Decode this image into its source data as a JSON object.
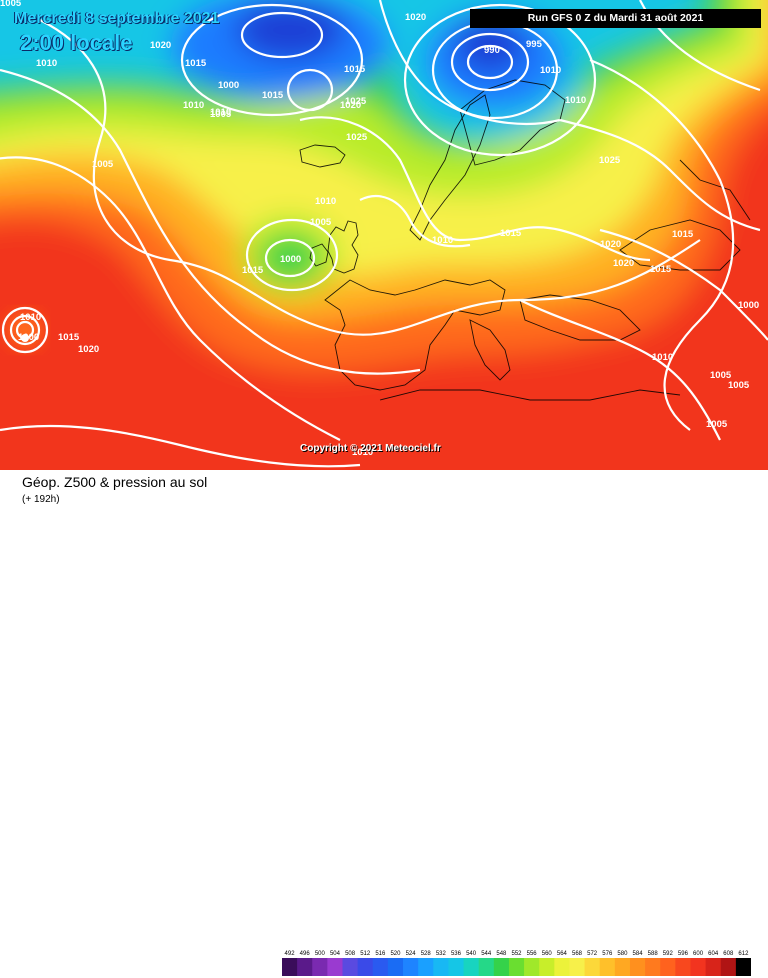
{
  "header": {
    "date_text": "Mercredi 8 septembre 2021",
    "time_text": "2:00 locale",
    "run_text": "Run GFS 0 Z du Mardi 31 août 2021"
  },
  "map": {
    "copyright": "Copyright © 2021 Meteociel.fr",
    "pressure_labels": [
      {
        "text": "1005"
      },
      {
        "text": "1010"
      },
      {
        "text": "1015"
      },
      {
        "text": "1020"
      },
      {
        "text": "1025"
      },
      {
        "text": "1000"
      },
      {
        "text": "990"
      },
      {
        "text": "995"
      },
      {
        "text": "1015"
      },
      {
        "text": "1010"
      },
      {
        "text": "1010"
      },
      {
        "text": "1015"
      },
      {
        "text": "1020"
      },
      {
        "text": "1025"
      },
      {
        "text": "1020"
      },
      {
        "text": "1015"
      },
      {
        "text": "1015"
      },
      {
        "text": "1000"
      },
      {
        "text": "1010"
      },
      {
        "text": "1005"
      },
      {
        "text": "1005"
      },
      {
        "text": "1005"
      },
      {
        "text": "1010"
      },
      {
        "text": "1015"
      },
      {
        "text": "1020"
      },
      {
        "text": "1010"
      },
      {
        "text": "1000"
      },
      {
        "text": "1000"
      },
      {
        "text": "1010"
      },
      {
        "text": "1005"
      },
      {
        "text": "1015"
      },
      {
        "text": "1010"
      },
      {
        "text": "1020"
      },
      {
        "text": "1005"
      },
      {
        "text": "1010"
      },
      {
        "text": "1015"
      },
      {
        "text": "1025"
      },
      {
        "text": "1005"
      },
      {
        "text": "1020"
      },
      {
        "text": "1010"
      }
    ],
    "colors": {
      "deep_blue": "#1a3fd6",
      "blue": "#1e7cff",
      "cyan": "#15c6e6",
      "green": "#35d24a",
      "yellow_green": "#b9ec2a",
      "yellow": "#f7f04a",
      "orange": "#ffb020",
      "red_orange": "#ff6a1e",
      "red": "#f2341f",
      "isobar": "#ffffff"
    }
  },
  "footer": {
    "product": "Géop. Z500 & pression au sol",
    "lead_time": "(+ 192h)"
  },
  "legend": {
    "values": [
      "492",
      "496",
      "500",
      "504",
      "508",
      "512",
      "516",
      "520",
      "524",
      "528",
      "532",
      "536",
      "540",
      "544",
      "548",
      "552",
      "556",
      "560",
      "564",
      "568",
      "572",
      "576",
      "580",
      "584",
      "588",
      "592",
      "596",
      "600",
      "604",
      "608",
      "612"
    ],
    "colors": [
      "#3a0d5a",
      "#5a1a8a",
      "#7a2ab0",
      "#9a3ad0",
      "#5a4ae0",
      "#3a4ae8",
      "#2a5af0",
      "#1a6cf4",
      "#1e84ff",
      "#1aa0ff",
      "#18b8f4",
      "#15c6e6",
      "#18d4c0",
      "#25d888",
      "#35d24a",
      "#6ade30",
      "#a0e82a",
      "#c8ee2a",
      "#ecf23a",
      "#f7f04a",
      "#fcd83a",
      "#ffc02a",
      "#ffa822",
      "#ff901e",
      "#ff7a1e",
      "#ff621e",
      "#f8481e",
      "#f2341f",
      "#d8241a",
      "#b01414",
      "#000000"
    ]
  }
}
